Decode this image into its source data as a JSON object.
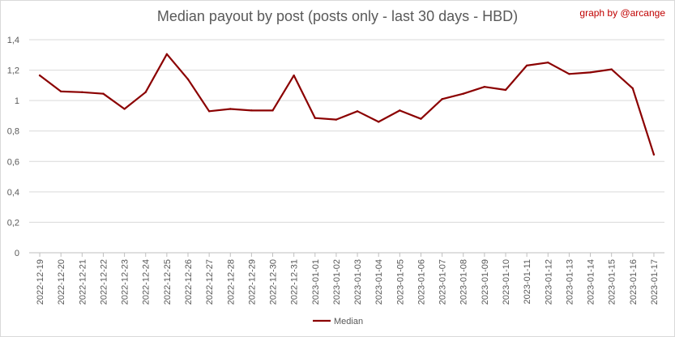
{
  "header": {
    "title": "Median payout by post (posts only - last 30 days - HBD)",
    "credit": "graph by @arcange"
  },
  "chart_data": {
    "type": "line",
    "x": [
      "2022-12-19",
      "2022-12-20",
      "2022-12-21",
      "2022-12-22",
      "2022-12-23",
      "2022-12-24",
      "2022-12-25",
      "2022-12-26",
      "2022-12-27",
      "2022-12-28",
      "2022-12-29",
      "2022-12-30",
      "2022-12-31",
      "2023-01-01",
      "2023-01-02",
      "2023-01-03",
      "2023-01-04",
      "2023-01-05",
      "2023-01-06",
      "2023-01-07",
      "2023-01-08",
      "2023-01-09",
      "2023-01-10",
      "2023-01-11",
      "2023-01-12",
      "2023-01-13",
      "2023-01-14",
      "2023-01-15",
      "2023-01-16",
      "2023-01-17"
    ],
    "series": [
      {
        "name": "Median",
        "color": "#8b0000",
        "values": [
          1.165,
          1.06,
          1.055,
          1.045,
          0.945,
          1.055,
          1.305,
          1.14,
          0.93,
          0.945,
          0.935,
          0.935,
          1.165,
          0.885,
          0.875,
          0.93,
          0.86,
          0.935,
          0.88,
          1.01,
          1.045,
          1.09,
          1.07,
          1.23,
          1.25,
          1.175,
          1.185,
          1.205,
          1.08,
          0.645
        ]
      }
    ],
    "yticks": [
      "0",
      "0,2",
      "0,4",
      "0,6",
      "0,8",
      "1",
      "1,2",
      "1,4"
    ],
    "ylim": [
      0,
      1.4
    ],
    "grid": true,
    "legend": "bottom-center"
  }
}
